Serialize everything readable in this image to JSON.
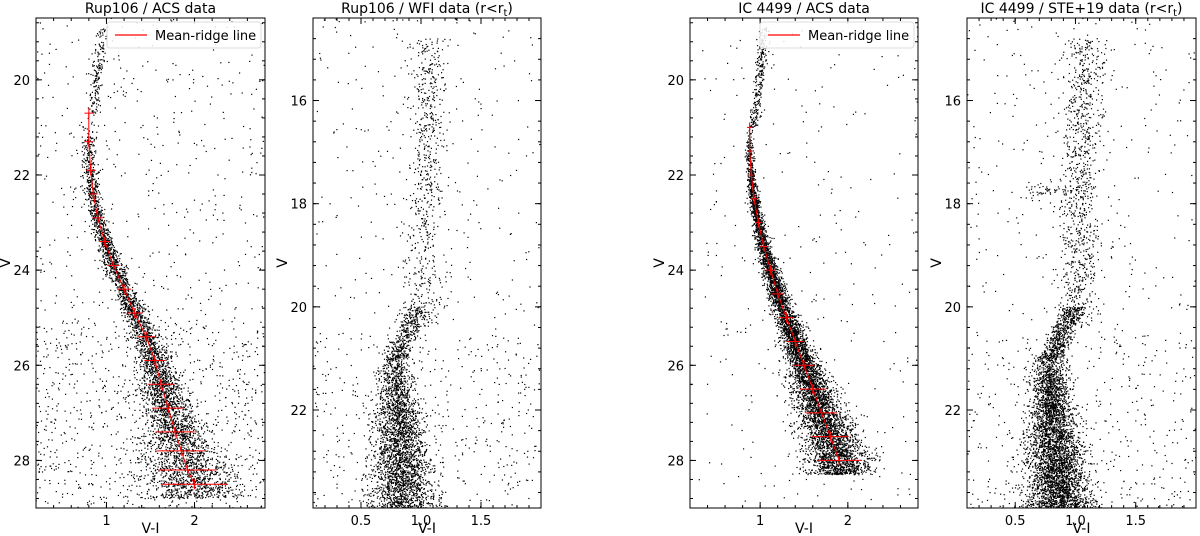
{
  "chart_data": [
    {
      "type": "scatter",
      "title": "Rup106 / ACS data",
      "xlabel": "V-I",
      "ylabel": "V",
      "xlim": [
        0.2,
        2.8
      ],
      "ylim": [
        29.0,
        18.7
      ],
      "y_inverted": true,
      "xticks": [
        1,
        2
      ],
      "yticks": [
        20,
        22,
        24,
        26,
        28
      ],
      "grid": false,
      "legend": {
        "position": "top-right",
        "entries": [
          "Mean-ridge line"
        ]
      },
      "series": [
        {
          "name": "Mean-ridge line",
          "color": "#ff0000",
          "x": [
            0.8,
            0.8,
            0.82,
            0.85,
            0.9,
            0.98,
            1.08,
            1.2,
            1.32,
            1.45,
            1.55,
            1.62,
            1.7,
            1.78,
            1.85,
            1.92,
            2.0
          ],
          "y": [
            20.7,
            21.3,
            21.9,
            22.4,
            22.9,
            23.4,
            23.9,
            24.4,
            24.9,
            25.4,
            25.9,
            26.4,
            26.9,
            27.4,
            27.8,
            28.2,
            28.5
          ],
          "xerr": [
            0.05,
            0.05,
            0.05,
            0.05,
            0.06,
            0.06,
            0.07,
            0.08,
            0.09,
            0.1,
            0.12,
            0.15,
            0.18,
            0.22,
            0.28,
            0.33,
            0.38
          ]
        }
      ]
    },
    {
      "type": "scatter",
      "title": "Rup106 / WFI data (r<r",
      "title_subscript": "t",
      "title_suffix": ")",
      "xlabel": "V-I",
      "ylabel": "V",
      "xlim": [
        0.1,
        2.0
      ],
      "ylim": [
        23.9,
        14.4
      ],
      "y_inverted": true,
      "xticks": [
        0.5,
        1.0,
        1.5
      ],
      "yticks": [
        16,
        18,
        20,
        22
      ],
      "grid": false
    },
    {
      "type": "scatter",
      "title": "IC 4499 / ACS data",
      "xlabel": "V-I",
      "ylabel": "V",
      "xlim": [
        0.2,
        2.8
      ],
      "ylim": [
        29.0,
        18.7
      ],
      "y_inverted": true,
      "xticks": [
        1,
        2
      ],
      "yticks": [
        20,
        22,
        24,
        26,
        28
      ],
      "grid": false,
      "legend": {
        "position": "top-right",
        "entries": [
          "Mean-ridge line"
        ]
      },
      "series": [
        {
          "name": "Mean-ridge line",
          "color": "#ff0000",
          "x": [
            0.88,
            0.88,
            0.9,
            0.93,
            0.98,
            1.04,
            1.12,
            1.2,
            1.3,
            1.4,
            1.5,
            1.6,
            1.7,
            1.8,
            1.9
          ],
          "y": [
            21.0,
            21.5,
            22.0,
            22.5,
            23.0,
            23.5,
            24.0,
            24.5,
            25.0,
            25.5,
            26.0,
            26.5,
            27.0,
            27.5,
            28.0
          ],
          "xerr": [
            0.03,
            0.03,
            0.03,
            0.04,
            0.04,
            0.05,
            0.06,
            0.07,
            0.08,
            0.1,
            0.12,
            0.15,
            0.18,
            0.21,
            0.25
          ]
        }
      ]
    },
    {
      "type": "scatter",
      "title": "IC 4499 / STE+19 data (r<r",
      "title_subscript": "t",
      "title_suffix": ")",
      "xlabel": "V-I",
      "ylabel": "V",
      "xlim": [
        0.1,
        2.0
      ],
      "ylim": [
        23.9,
        14.4
      ],
      "y_inverted": true,
      "xticks": [
        0.5,
        1.0,
        1.5
      ],
      "yticks": [
        16,
        18,
        20,
        22
      ],
      "grid": false
    }
  ]
}
